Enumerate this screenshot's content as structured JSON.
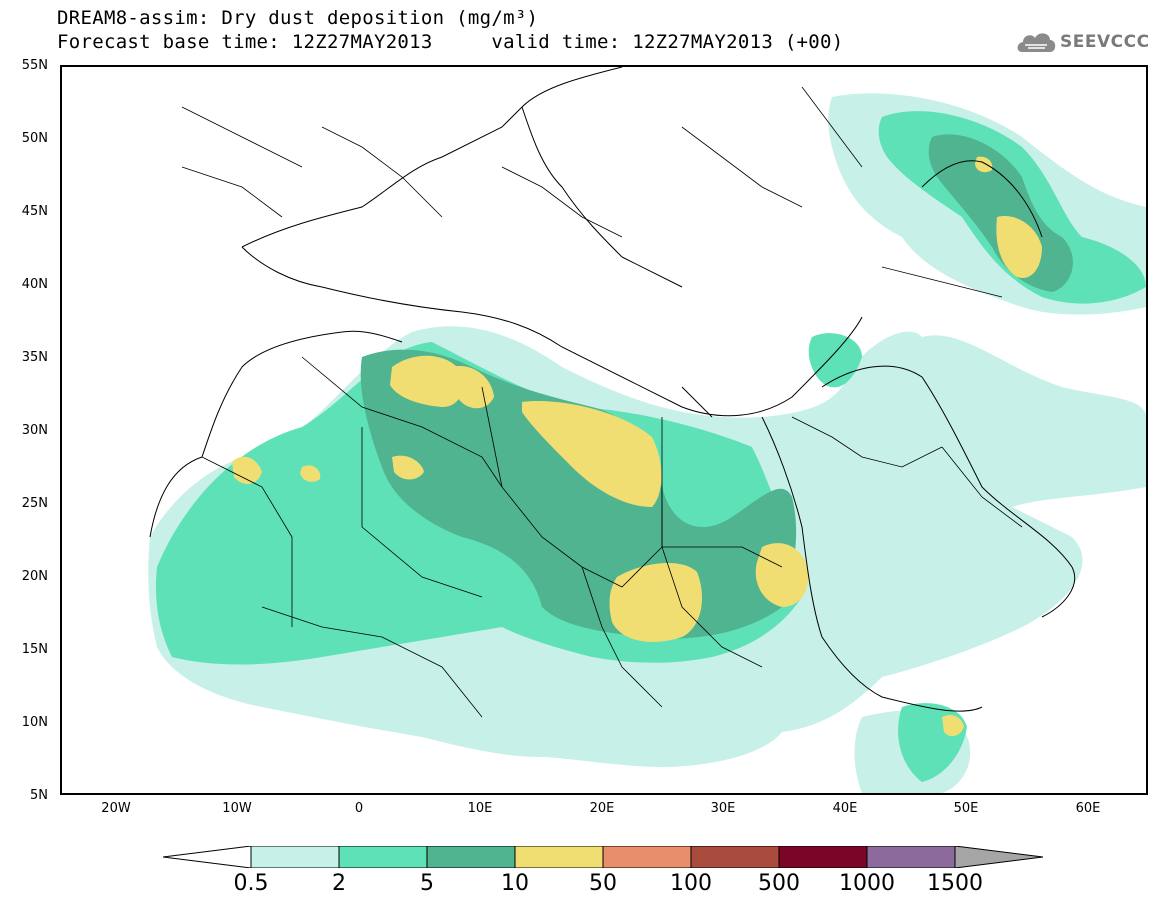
{
  "title_line1": "DREAM8-assim: Dry dust deposition (mg/m³)",
  "title_line2": "Forecast base time: 12Z27MAY2013     valid time: 12Z27MAY2013 (+00)",
  "logo": {
    "name": "SEEVCCC",
    "icon": "cloud-logo-icon"
  },
  "map": {
    "lat_ticks": [
      "55N",
      "50N",
      "45N",
      "40N",
      "35N",
      "30N",
      "25N",
      "20N",
      "15N",
      "10N",
      "5N"
    ],
    "lon_ticks": [
      "20W",
      "10W",
      "0",
      "10E",
      "20E",
      "30E",
      "40E",
      "50E",
      "60E"
    ],
    "lat_range": [
      5,
      55
    ],
    "lon_range": [
      -25,
      65
    ]
  },
  "colorbar": {
    "labels": [
      "0.5",
      "2",
      "5",
      "10",
      "50",
      "100",
      "500",
      "1000",
      "1500"
    ],
    "colors": [
      "#c6f0e8",
      "#5ee1b7",
      "#4fb48f",
      "#f1de73",
      "#e88e6a",
      "#a94c3d",
      "#7a0526",
      "#8c6b9c"
    ],
    "under_color": "#ffffff",
    "over_color": "#a6a6a6"
  }
}
